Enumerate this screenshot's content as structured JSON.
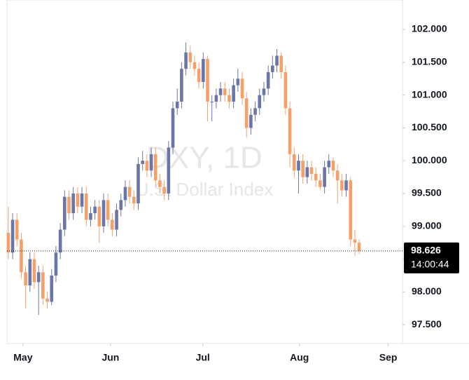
{
  "chart_data": {
    "type": "candlestick",
    "watermark": "DXY, 1D",
    "watermark_subtitle": "U.S. Dollar Index",
    "up_color": "#6a76a9",
    "down_color": "#f4a06b",
    "open": [
      98.9,
      98.6,
      99.1,
      98.8,
      98.3,
      98.1,
      98.5,
      98.15,
      98.3,
      97.9,
      97.85,
      98.25,
      98.6,
      98.95,
      99.45,
      99.2,
      99.5,
      99.3,
      99.5,
      99.1,
      99.2,
      99.3,
      99.0,
      99.4,
      99.1,
      98.95,
      99.25,
      99.4,
      99.6,
      99.45,
      99.35,
      99.95,
      100.0,
      99.85,
      100.1,
      99.7,
      99.6,
      99.5,
      100.2,
      100.8,
      100.9,
      101.4,
      101.65,
      101.5,
      101.4,
      101.2,
      101.55,
      100.9,
      100.9,
      101.0,
      101.1,
      101.0,
      100.9,
      101.15,
      101.25,
      100.95,
      100.5,
      100.7,
      100.8,
      101.0,
      101.1,
      101.35,
      101.45,
      101.6,
      101.35,
      100.8,
      100.1,
      99.85,
      100.0,
      99.75,
      99.9,
      99.8,
      99.7,
      99.6,
      99.9,
      100.0,
      99.85,
      99.7,
      99.55,
      99.7,
      98.8,
      98.75
    ],
    "high": [
      99.3,
      99.2,
      99.2,
      98.9,
      98.4,
      98.6,
      98.6,
      98.4,
      98.4,
      98.0,
      98.35,
      98.7,
      99.05,
      99.55,
      99.55,
      99.6,
      99.6,
      99.6,
      99.6,
      99.3,
      99.4,
      99.4,
      99.5,
      99.5,
      99.2,
      99.35,
      99.5,
      99.7,
      99.7,
      99.55,
      100.05,
      100.15,
      100.1,
      100.2,
      100.2,
      99.8,
      99.7,
      100.3,
      100.9,
      101.1,
      101.5,
      101.8,
      101.75,
      101.6,
      101.5,
      101.65,
      101.6,
      101.0,
      101.1,
      101.2,
      101.2,
      101.1,
      101.25,
      101.4,
      101.35,
      101.05,
      100.8,
      100.9,
      101.1,
      101.2,
      101.45,
      101.6,
      101.7,
      101.65,
      101.45,
      100.9,
      100.2,
      100.1,
      100.1,
      100.0,
      100.0,
      99.9,
      99.8,
      100.0,
      100.1,
      100.05,
      99.95,
      99.8,
      99.8,
      99.75,
      98.95,
      98.8
    ],
    "low": [
      98.5,
      98.5,
      98.7,
      98.2,
      97.75,
      98.0,
      98.05,
      97.65,
      97.8,
      97.75,
      97.8,
      98.15,
      98.5,
      98.85,
      99.1,
      99.1,
      99.2,
      99.2,
      99.0,
      99.0,
      99.1,
      98.75,
      98.9,
      99.0,
      98.85,
      98.85,
      99.15,
      99.3,
      99.35,
      99.25,
      99.25,
      99.85,
      99.75,
      99.75,
      99.6,
      99.5,
      99.4,
      99.4,
      100.1,
      100.7,
      100.8,
      101.3,
      101.4,
      101.3,
      101.1,
      101.1,
      100.6,
      100.6,
      100.8,
      100.9,
      100.9,
      100.8,
      100.8,
      101.05,
      100.85,
      100.35,
      100.4,
      100.6,
      100.7,
      100.9,
      101.0,
      101.25,
      101.35,
      101.25,
      100.7,
      99.9,
      99.75,
      99.5,
      99.65,
      99.65,
      99.7,
      99.6,
      99.55,
      99.5,
      99.8,
      99.75,
      99.35,
      99.45,
      99.45,
      98.7,
      98.55,
      98.58
    ],
    "close": [
      98.6,
      99.1,
      98.8,
      98.3,
      98.1,
      98.5,
      98.15,
      98.3,
      97.9,
      97.85,
      98.25,
      98.6,
      98.95,
      99.45,
      99.2,
      99.5,
      99.3,
      99.5,
      99.1,
      99.2,
      99.3,
      99.0,
      99.4,
      99.1,
      98.95,
      99.25,
      99.4,
      99.6,
      99.45,
      99.35,
      99.95,
      100.0,
      99.85,
      100.1,
      99.7,
      99.6,
      99.5,
      100.2,
      100.8,
      100.9,
      101.4,
      101.65,
      101.5,
      101.4,
      101.2,
      101.55,
      100.9,
      100.9,
      101.0,
      101.1,
      101.0,
      100.9,
      101.15,
      101.25,
      100.95,
      100.5,
      100.7,
      100.8,
      101.0,
      101.1,
      101.35,
      101.45,
      101.6,
      101.35,
      100.8,
      100.1,
      99.85,
      100.0,
      99.75,
      99.9,
      99.8,
      99.7,
      99.6,
      99.9,
      100.0,
      99.85,
      99.7,
      99.55,
      99.7,
      98.8,
      98.75,
      98.626
    ],
    "xlim": [
      -0.3,
      91
    ],
    "xticks": [
      {
        "value": 3.4,
        "label": "May"
      },
      {
        "value": 23.6,
        "label": "Jun"
      },
      {
        "value": 44.9,
        "label": "Jul"
      },
      {
        "value": 67.2,
        "label": "Aug"
      },
      {
        "value": 87.7,
        "label": "Sep"
      }
    ],
    "ylim": [
      97.214,
      102.449
    ],
    "yticks": [
      {
        "value": 97.5,
        "label": "97.500"
      },
      {
        "value": 98,
        "label": "98.000"
      },
      {
        "value": 98.5,
        "label": "98.500"
      },
      {
        "value": 99,
        "label": "99.000"
      },
      {
        "value": 99.5,
        "label": "99.500"
      },
      {
        "value": 100,
        "label": "100.000"
      },
      {
        "value": 100.5,
        "label": "100.500"
      },
      {
        "value": 101,
        "label": "101.000"
      },
      {
        "value": 101.5,
        "label": "101.500"
      },
      {
        "value": 102,
        "label": "102.000"
      }
    ],
    "last_price": 98.626,
    "countdown": "14:00:44"
  }
}
